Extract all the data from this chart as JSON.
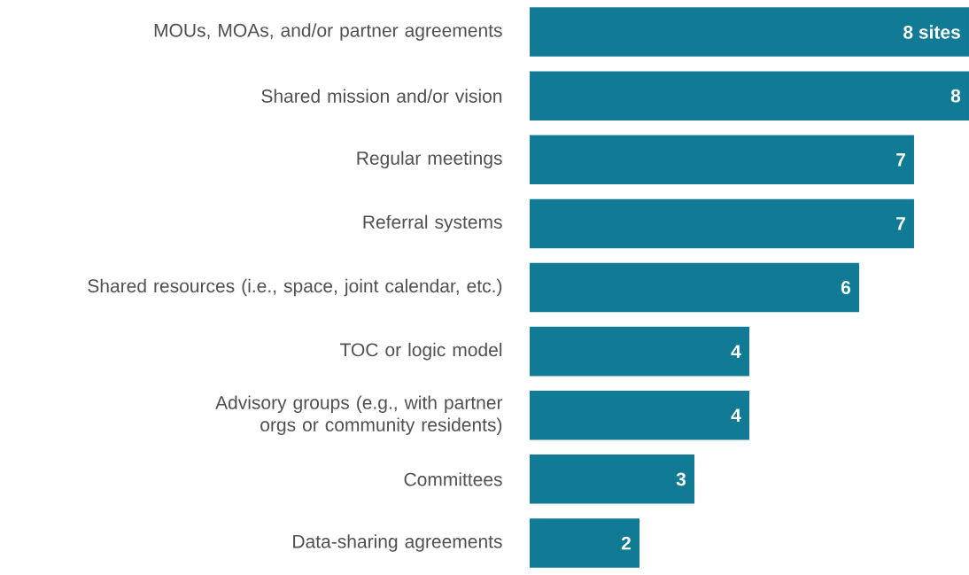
{
  "chart_data": {
    "type": "bar",
    "orientation": "horizontal",
    "categories": [
      "MOUs, MOAs, and/or partner agreements",
      "Shared mission and/or vision",
      "Regular meetings",
      "Referral systems",
      "Shared resources (i.e., space, joint calendar, etc.)",
      "TOC or logic model",
      "Advisory groups (e.g., with partner orgs or community residents)",
      "Committees",
      "Data-sharing agreements"
    ],
    "values": [
      8,
      8,
      7,
      7,
      6,
      4,
      4,
      3,
      2
    ],
    "value_labels": [
      "8 sites",
      "8",
      "7",
      "7",
      "6",
      "4",
      "4",
      "3",
      "2"
    ],
    "color": "#117b96",
    "xlim": [
      0,
      8
    ],
    "grid": false
  }
}
